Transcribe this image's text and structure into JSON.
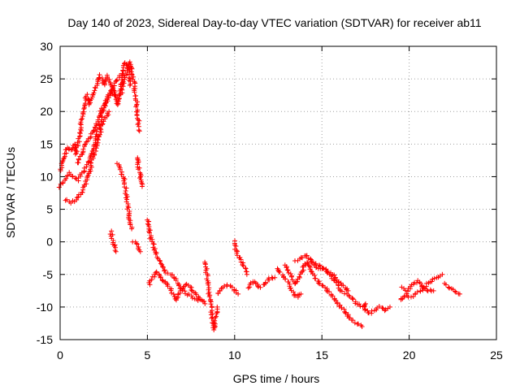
{
  "chart_data": {
    "type": "scatter",
    "title": "Day 140 of 2023, Sidereal Day-to-day VTEC variation (SDTVAR) for receiver ab11",
    "xlabel": "GPS time / hours",
    "ylabel": "SDTVAR / TECUs",
    "xlim": [
      0,
      25
    ],
    "ylim": [
      -15,
      30
    ],
    "xticks": [
      0,
      5,
      10,
      15,
      20,
      25
    ],
    "yticks": [
      -15,
      -10,
      -5,
      0,
      5,
      10,
      15,
      20,
      25,
      30
    ],
    "grid": true,
    "marker": "+",
    "marker_color": "#ff0000",
    "series": [
      {
        "name": "SDTVAR",
        "tracks": [
          [
            [
              0.0,
              8.5
            ],
            [
              0.25,
              9.5
            ],
            [
              0.5,
              10.5
            ],
            [
              0.75,
              10
            ],
            [
              1.0,
              9.5
            ],
            [
              1.25,
              10.5
            ],
            [
              1.5,
              11.5
            ],
            [
              1.75,
              13
            ],
            [
              2.0,
              15.5
            ],
            [
              2.25,
              18
            ],
            [
              2.5,
              20.5
            ],
            [
              2.75,
              22
            ],
            [
              3.0,
              23
            ],
            [
              3.25,
              22
            ],
            [
              3.5,
              23
            ],
            [
              3.75,
              26
            ],
            [
              4.0,
              27.5
            ],
            [
              4.2,
              25
            ],
            [
              4.35,
              22
            ],
            [
              4.45,
              19
            ],
            [
              4.55,
              17
            ]
          ],
          [
            [
              0.0,
              11
            ],
            [
              0.2,
              13
            ],
            [
              0.4,
              14.5
            ],
            [
              0.6,
              14
            ],
            [
              0.8,
              15
            ],
            [
              0.9,
              13.5
            ],
            [
              1.1,
              16
            ],
            [
              1.3,
              20
            ],
            [
              1.5,
              22.5
            ],
            [
              1.7,
              21
            ],
            [
              1.9,
              23
            ],
            [
              2.1,
              24
            ],
            [
              2.3,
              25.5
            ],
            [
              2.5,
              24
            ],
            [
              2.7,
              25.5
            ],
            [
              2.9,
              24
            ],
            [
              3.1,
              23
            ],
            [
              3.3,
              21
            ],
            [
              3.5,
              24
            ],
            [
              3.7,
              27.5
            ],
            [
              3.9,
              27
            ],
            [
              4.0,
              24
            ]
          ],
          [
            [
              0.3,
              6.5
            ],
            [
              0.6,
              6
            ],
            [
              0.9,
              6.5
            ],
            [
              1.2,
              7.5
            ],
            [
              1.4,
              8.5
            ],
            [
              1.6,
              10
            ],
            [
              1.8,
              12
            ],
            [
              2.0,
              14
            ],
            [
              2.2,
              16
            ],
            [
              2.4,
              18
            ],
            [
              2.6,
              19
            ],
            [
              2.8,
              20
            ]
          ],
          [
            [
              1.0,
              12
            ],
            [
              1.3,
              14
            ],
            [
              1.6,
              15.5
            ],
            [
              1.9,
              17
            ],
            [
              2.2,
              19
            ],
            [
              2.5,
              21
            ],
            [
              2.8,
              22.5
            ],
            [
              3.1,
              24
            ],
            [
              3.4,
              25.5
            ]
          ],
          [
            [
              3.3,
              12
            ],
            [
              3.5,
              11
            ],
            [
              3.7,
              9
            ],
            [
              3.8,
              7
            ],
            [
              3.9,
              5
            ],
            [
              4.0,
              3.5
            ],
            [
              4.1,
              2
            ]
          ],
          [
            [
              4.4,
              13
            ],
            [
              4.5,
              11.5
            ],
            [
              4.6,
              10
            ],
            [
              4.7,
              8.5
            ]
          ],
          [
            [
              2.9,
              1.5
            ],
            [
              3.0,
              0.5
            ],
            [
              3.1,
              -0.5
            ],
            [
              3.2,
              -1.5
            ]
          ],
          [
            [
              4.2,
              0
            ],
            [
              4.4,
              -0.5
            ],
            [
              4.6,
              -1.5
            ]
          ],
          [
            [
              5.0,
              3.5
            ],
            [
              5.1,
              2
            ],
            [
              5.2,
              0.5
            ],
            [
              5.4,
              -1
            ],
            [
              5.6,
              -2.5
            ],
            [
              5.8,
              -3.5
            ],
            [
              6.0,
              -4.5
            ],
            [
              6.3,
              -5
            ],
            [
              6.6,
              -5.5
            ],
            [
              6.8,
              -6.5
            ],
            [
              7.0,
              -7.5
            ],
            [
              7.3,
              -8
            ],
            [
              7.6,
              -8.5
            ],
            [
              7.9,
              -9
            ]
          ],
          [
            [
              5.1,
              -6.5
            ],
            [
              5.3,
              -5.5
            ],
            [
              5.5,
              -4.5
            ],
            [
              5.8,
              -5.5
            ],
            [
              6.1,
              -6.5
            ],
            [
              6.4,
              -7.5
            ],
            [
              6.6,
              -9
            ],
            [
              6.8,
              -8
            ],
            [
              7.0,
              -7
            ],
            [
              7.3,
              -6.5
            ],
            [
              7.6,
              -7.5
            ],
            [
              8.0,
              -8.5
            ],
            [
              8.3,
              -9.5
            ]
          ],
          [
            [
              8.3,
              -3
            ],
            [
              8.4,
              -5
            ],
            [
              8.5,
              -7
            ],
            [
              8.6,
              -9
            ],
            [
              8.7,
              -11
            ],
            [
              8.8,
              -13.5
            ],
            [
              8.9,
              -12
            ],
            [
              9.0,
              -10
            ]
          ],
          [
            [
              9.0,
              -8
            ],
            [
              9.3,
              -7
            ],
            [
              9.6,
              -6.5
            ],
            [
              9.9,
              -7
            ],
            [
              10.2,
              -8
            ]
          ],
          [
            [
              10.0,
              0
            ],
            [
              10.1,
              -1.5
            ],
            [
              10.3,
              -2.5
            ],
            [
              10.5,
              -3.5
            ],
            [
              10.7,
              -5
            ]
          ],
          [
            [
              10.8,
              -7
            ],
            [
              11.1,
              -6
            ],
            [
              11.4,
              -7
            ],
            [
              11.7,
              -6.5
            ],
            [
              12.0,
              -5.5
            ],
            [
              12.3,
              -5.5
            ]
          ],
          [
            [
              12.4,
              -4
            ],
            [
              12.7,
              -5
            ],
            [
              13.0,
              -6
            ],
            [
              13.2,
              -7
            ],
            [
              13.4,
              -8
            ],
            [
              13.6,
              -8.5
            ],
            [
              13.8,
              -8
            ]
          ],
          [
            [
              12.9,
              -3.5
            ],
            [
              13.2,
              -5
            ],
            [
              13.5,
              -6.5
            ],
            [
              13.8,
              -5
            ],
            [
              14.1,
              -3
            ],
            [
              14.3,
              -4
            ],
            [
              14.6,
              -5.5
            ],
            [
              14.9,
              -6.5
            ],
            [
              15.2,
              -7
            ],
            [
              15.5,
              -8
            ],
            [
              15.8,
              -9
            ],
            [
              16.1,
              -10
            ],
            [
              16.4,
              -11
            ],
            [
              16.7,
              -12
            ],
            [
              17.0,
              -12.5
            ],
            [
              17.3,
              -13
            ]
          ],
          [
            [
              13.5,
              -3
            ],
            [
              13.8,
              -2.5
            ],
            [
              14.1,
              -2
            ],
            [
              14.4,
              -3
            ],
            [
              14.7,
              -4
            ],
            [
              15.0,
              -4
            ],
            [
              15.3,
              -4.5
            ],
            [
              15.6,
              -5.5
            ],
            [
              15.9,
              -6.5
            ],
            [
              16.1,
              -7.5
            ],
            [
              16.4,
              -8
            ],
            [
              16.7,
              -8.5
            ],
            [
              17.0,
              -9.5
            ],
            [
              17.3,
              -10
            ],
            [
              17.5,
              -9.5
            ]
          ],
          [
            [
              14.4,
              -3
            ],
            [
              14.7,
              -3.5
            ],
            [
              15.0,
              -4
            ],
            [
              15.3,
              -4.5
            ],
            [
              15.6,
              -5
            ],
            [
              15.9,
              -6
            ],
            [
              16.2,
              -6.5
            ],
            [
              16.5,
              -7.5
            ]
          ],
          [
            [
              17.4,
              -10
            ],
            [
              17.7,
              -11
            ],
            [
              18.0,
              -10.5
            ],
            [
              18.3,
              -10
            ],
            [
              18.6,
              -10.5
            ],
            [
              18.9,
              -10
            ]
          ],
          [
            [
              19.5,
              -9
            ],
            [
              19.8,
              -8
            ],
            [
              20.1,
              -8.5
            ],
            [
              20.4,
              -8
            ],
            [
              20.7,
              -7.5
            ],
            [
              21.0,
              -6.5
            ],
            [
              21.3,
              -6
            ],
            [
              21.6,
              -5.5
            ],
            [
              21.9,
              -5
            ]
          ],
          [
            [
              19.6,
              -7
            ],
            [
              19.9,
              -7.5
            ],
            [
              20.2,
              -6.5
            ],
            [
              20.5,
              -6
            ],
            [
              20.8,
              -7
            ],
            [
              21.1,
              -7.5
            ],
            [
              21.4,
              -7.5
            ]
          ],
          [
            [
              22.0,
              -6.5
            ],
            [
              22.3,
              -7
            ],
            [
              22.6,
              -7.5
            ],
            [
              22.9,
              -8
            ]
          ]
        ]
      }
    ]
  }
}
